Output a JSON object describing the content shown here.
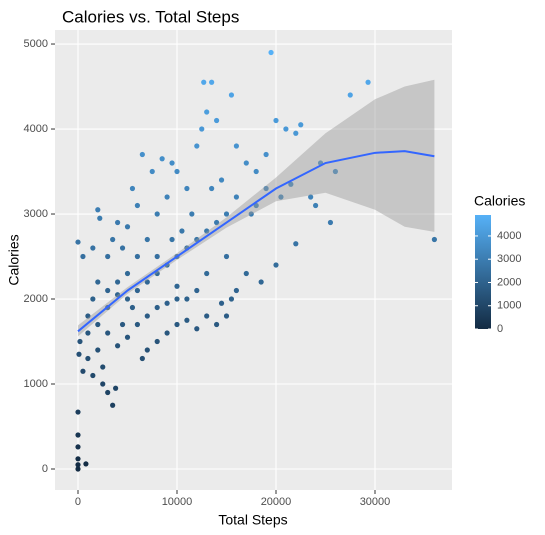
{
  "chart_data": {
    "type": "scatter",
    "title": "Calories vs. Total Steps",
    "x_label": "Total Steps",
    "y_label": "Calories",
    "legend_title": "Calories",
    "xlim": [
      -2323,
      37778
    ],
    "ylim": [
      -247,
      5165
    ],
    "xticks": [
      0,
      10000,
      20000,
      30000
    ],
    "yticks": [
      0,
      1000,
      2000,
      3000,
      4000,
      5000
    ],
    "grid": true,
    "color_scale": {
      "low": "#132B43",
      "high": "#56B1F7",
      "limits": [
        0,
        4900
      ],
      "ticks": [
        0,
        1000,
        2000,
        3000,
        4000
      ]
    },
    "series": [
      {
        "name": "Calories",
        "x": [
          0,
          0,
          0,
          0,
          0,
          0,
          0,
          800,
          100,
          200,
          500,
          1000,
          1500,
          2000,
          2500,
          3000,
          3500,
          3800,
          1000,
          1500,
          2000,
          2000,
          2200,
          3000,
          3500,
          4000,
          4500,
          5000,
          5500,
          6000,
          3000,
          4000,
          5000,
          6000,
          7000,
          8000,
          9000,
          10000,
          11000,
          12000,
          13000,
          14000,
          5000,
          6000,
          7000,
          8000,
          9000,
          10000,
          11000,
          12000,
          13000,
          14000,
          15000,
          7000,
          8000,
          9000,
          10000,
          11000,
          12000,
          12500,
          12700,
          13500,
          13000,
          14000,
          15500,
          16000,
          17000,
          18000,
          19000,
          20000,
          21000,
          22000,
          22500,
          19500,
          27500,
          29300,
          36000,
          23500,
          24000,
          22000,
          18000,
          16000,
          17500,
          19000,
          20500,
          21500,
          15000,
          15500,
          16000,
          14500,
          13000,
          12000,
          11000,
          10000,
          9000,
          8000,
          7500,
          6500,
          8500,
          9500,
          6000,
          5000,
          4000,
          3000,
          2000,
          1000,
          500,
          1500,
          7000,
          8000,
          6500,
          11500,
          10500,
          13500,
          14500,
          9500,
          4500,
          2500,
          10000,
          17000,
          15000,
          5500,
          4000,
          25500,
          26000,
          24500,
          18500,
          20000,
          3000
        ],
        "values": [
          0,
          50,
          120,
          260,
          400,
          670,
          2670,
          60,
          1350,
          1500,
          1150,
          1300,
          1100,
          1400,
          1000,
          900,
          750,
          950,
          1800,
          2000,
          2200,
          3050,
          2950,
          2500,
          2700,
          2900,
          2600,
          2850,
          3300,
          3100,
          1600,
          1450,
          1550,
          1700,
          1800,
          1900,
          1600,
          1700,
          1750,
          1650,
          1800,
          1700,
          2000,
          2100,
          2200,
          2300,
          2400,
          2500,
          2600,
          2700,
          2800,
          2900,
          3000,
          2700,
          3000,
          3200,
          3500,
          3300,
          3800,
          4000,
          4550,
          4550,
          4200,
          4100,
          4400,
          3800,
          3600,
          3500,
          3700,
          4100,
          4000,
          3950,
          4050,
          4900,
          4400,
          4550,
          2700,
          3200,
          3100,
          2650,
          3100,
          3200,
          3000,
          3300,
          3200,
          3350,
          2500,
          2000,
          2100,
          1950,
          2300,
          2100,
          2000,
          2150,
          1950,
          2500,
          3500,
          3700,
          3650,
          3600,
          2500,
          2300,
          2050,
          1900,
          1700,
          1600,
          2500,
          2600,
          1400,
          1500,
          1300,
          3000,
          2800,
          3300,
          3400,
          2700,
          1700,
          1200,
          2000,
          2300,
          1800,
          1900,
          2200,
          2900,
          3500,
          3600,
          2200,
          2400,
          2100
        ]
      }
    ],
    "smooth": {
      "color": "#3366FF",
      "band_color": "#999999",
      "x": [
        0,
        5000,
        10000,
        15000,
        20000,
        25000,
        30000,
        33000,
        36000
      ],
      "values": [
        1620,
        2100,
        2500,
        2900,
        3300,
        3600,
        3720,
        3740,
        3680
      ],
      "lower": [
        1560,
        2060,
        2460,
        2840,
        3150,
        3250,
        3050,
        2850,
        2790
      ],
      "upper": [
        1690,
        2140,
        2540,
        2960,
        3430,
        3950,
        4350,
        4500,
        4580
      ]
    }
  }
}
